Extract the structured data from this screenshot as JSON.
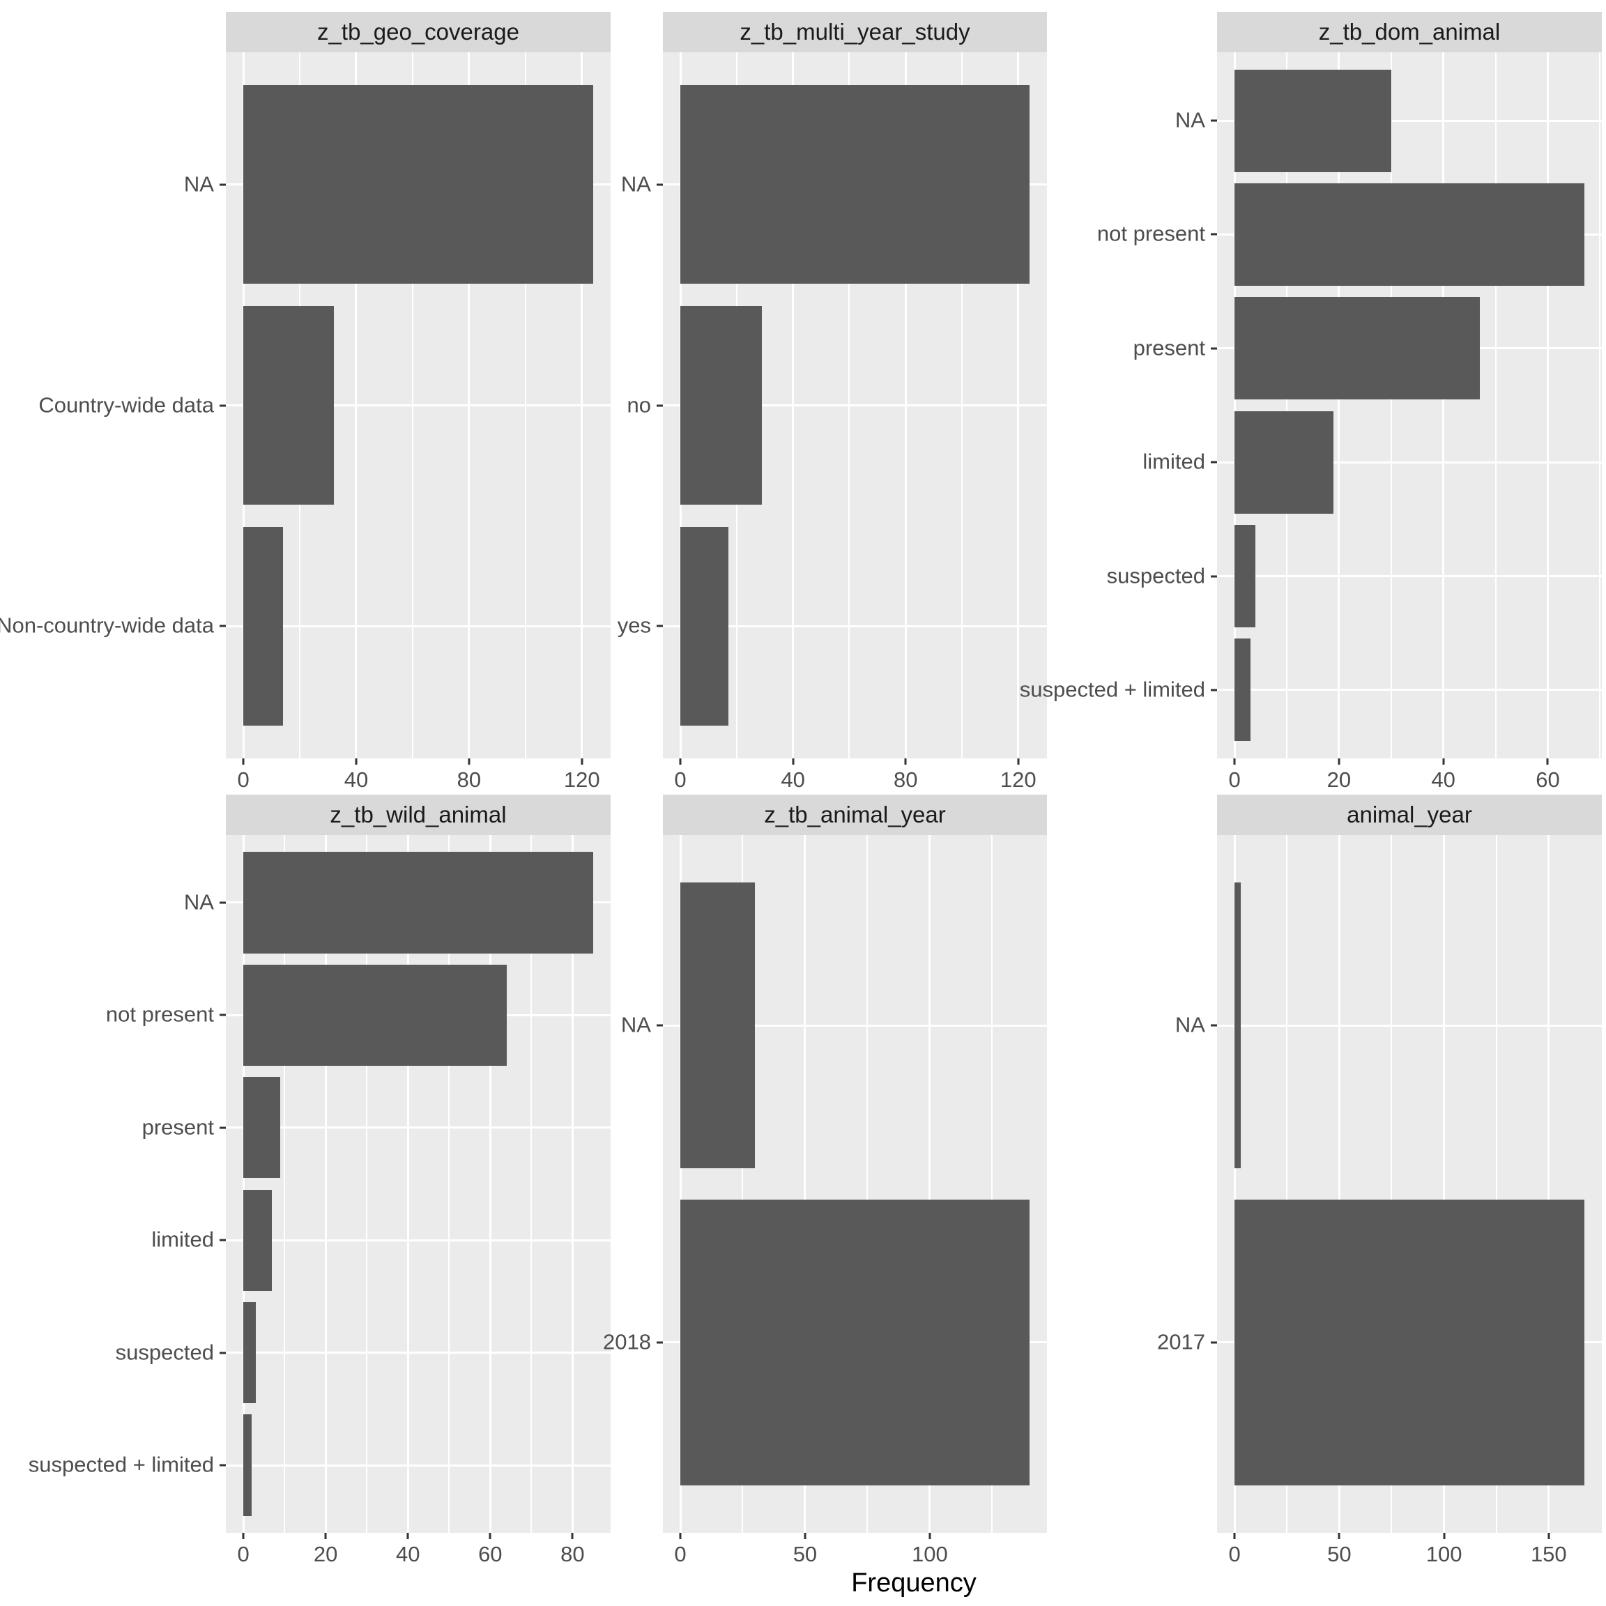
{
  "colors": {
    "bar": "#595959",
    "panel_background": "#ebebeb",
    "strip_background": "#d9d9d9",
    "gridline": "#ffffff",
    "tick_mark": "#333333",
    "axis_text": "#4d4d4d",
    "strip_text": "#1a1a1a",
    "axis_title_text": "#000000"
  },
  "chart_data": {
    "type": "bar",
    "orientation": "horizontal",
    "x_axis_title": "Frequency",
    "grid": "on",
    "legend": "none",
    "facets": [
      {
        "title": "z_tb_geo_coverage",
        "categories": [
          "NA",
          "Country-wide data",
          "Non-country-wide data"
        ],
        "values": [
          124,
          32,
          14
        ],
        "x_max": 124,
        "x_ticks": [
          0,
          40,
          80,
          120
        ],
        "x_minor_ticks": [
          20,
          60,
          100
        ]
      },
      {
        "title": "z_tb_multi_year_study",
        "categories": [
          "NA",
          "no",
          "yes"
        ],
        "values": [
          124,
          29,
          17
        ],
        "x_max": 124,
        "x_ticks": [
          0,
          40,
          80,
          120
        ],
        "x_minor_ticks": [
          20,
          60,
          100
        ]
      },
      {
        "title": "z_tb_dom_animal",
        "categories": [
          "NA",
          "not present",
          "present",
          "limited",
          "suspected",
          "suspected + limited"
        ],
        "values": [
          30,
          67,
          47,
          19,
          4,
          3
        ],
        "x_max": 67,
        "x_ticks": [
          0,
          20,
          40,
          60
        ],
        "x_minor_ticks": [
          10,
          30,
          50,
          70
        ]
      },
      {
        "title": "z_tb_wild_animal",
        "categories": [
          "NA",
          "not present",
          "present",
          "limited",
          "suspected",
          "suspected + limited"
        ],
        "values": [
          85,
          64,
          9,
          7,
          3,
          2
        ],
        "x_max": 85,
        "x_ticks": [
          0,
          20,
          40,
          60,
          80
        ],
        "x_minor_ticks": [
          10,
          30,
          50,
          70
        ]
      },
      {
        "title": "z_tb_animal_year",
        "categories": [
          "NA",
          "2018"
        ],
        "values": [
          30,
          140
        ],
        "x_max": 140,
        "x_ticks": [
          0,
          50,
          100
        ],
        "x_minor_ticks": [
          25,
          75,
          125
        ]
      },
      {
        "title": "animal_year",
        "categories": [
          "NA",
          "2017"
        ],
        "values": [
          3,
          167
        ],
        "x_max": 167,
        "x_ticks": [
          0,
          50,
          100,
          150
        ],
        "x_minor_ticks": [
          25,
          75,
          125
        ]
      }
    ]
  }
}
